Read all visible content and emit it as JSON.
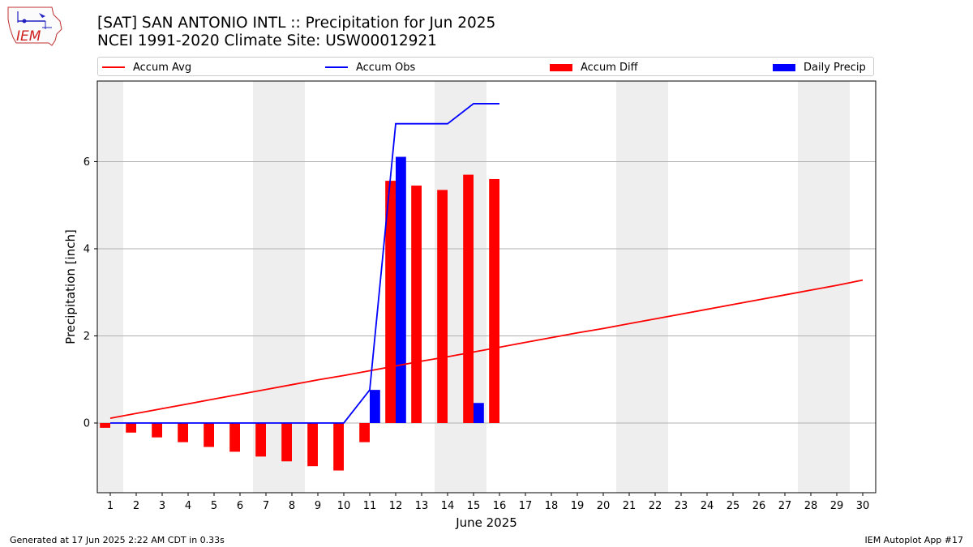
{
  "header": {
    "title": "[SAT] SAN ANTONIO INTL :: Precipitation for Jun 2025",
    "subtitle": "NCEI 1991-2020 Climate Site: USW00012921",
    "logo_text": "IEM"
  },
  "footer": {
    "generated": "Generated at 17 Jun 2025 2:22 AM CDT in 0.33s",
    "app": "IEM Autoplot App #17"
  },
  "colors": {
    "avg": "#ff0000",
    "obs": "#0000ff",
    "diff": "#ff0000",
    "daily": "#0000ff",
    "weekend": "#eeeeee",
    "grid": "#b0b0b0"
  },
  "chart_data": {
    "type": "bar",
    "title": "[SAT] SAN ANTONIO INTL :: Precipitation for Jun 2025",
    "xlabel": "June 2025",
    "ylabel": "Precipitation [inch]",
    "xlim": [
      0.5,
      30.5
    ],
    "ylim": [
      -1.6,
      7.85
    ],
    "yticks": [
      0,
      2,
      4,
      6
    ],
    "days": [
      1,
      2,
      3,
      4,
      5,
      6,
      7,
      8,
      9,
      10,
      11,
      12,
      13,
      14,
      15,
      16,
      17,
      18,
      19,
      20,
      21,
      22,
      23,
      24,
      25,
      26,
      27,
      28,
      29,
      30
    ],
    "weekend_days": [
      1,
      7,
      8,
      14,
      15,
      21,
      22,
      28,
      29
    ],
    "grid": true,
    "legend_position": "top",
    "series": [
      {
        "name": "Accum Avg",
        "kind": "line",
        "values": [
          0.11,
          0.22,
          0.33,
          0.44,
          0.55,
          0.66,
          0.77,
          0.88,
          0.99,
          1.09,
          1.2,
          1.31,
          1.42,
          1.52,
          1.63,
          1.74,
          1.85,
          1.96,
          2.07,
          2.17,
          2.28,
          2.39,
          2.5,
          2.61,
          2.72,
          2.83,
          2.94,
          3.05,
          3.16,
          3.28
        ]
      },
      {
        "name": "Accum Obs",
        "kind": "line",
        "values": [
          0,
          0,
          0,
          0,
          0,
          0,
          0,
          0,
          0,
          0,
          0.76,
          6.87,
          6.87,
          6.87,
          7.33,
          7.33
        ]
      },
      {
        "name": "Accum Diff",
        "kind": "bar",
        "values": [
          -0.11,
          -0.22,
          -0.33,
          -0.44,
          -0.55,
          -0.66,
          -0.77,
          -0.88,
          -0.99,
          -1.09,
          -0.44,
          5.56,
          5.45,
          5.35,
          5.7,
          5.6
        ]
      },
      {
        "name": "Daily Precip",
        "kind": "bar",
        "values": [
          0,
          0,
          0,
          0,
          0,
          0,
          0,
          0,
          0,
          0,
          0.76,
          6.11,
          0,
          0,
          0.46,
          0
        ]
      }
    ]
  }
}
